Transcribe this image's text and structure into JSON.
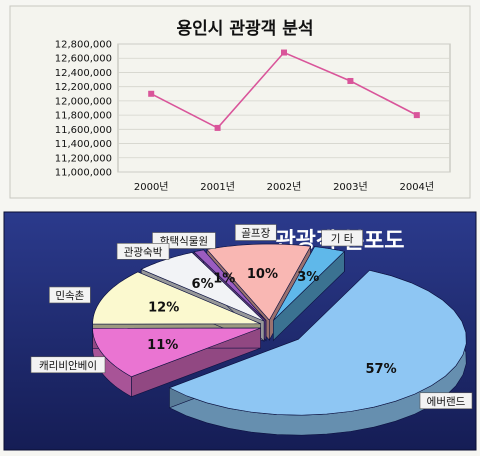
{
  "chart_data": [
    {
      "type": "line",
      "title": "용인시 관광객 분석",
      "categories": [
        "2000년",
        "2001년",
        "2002년",
        "2003년",
        "2004년"
      ],
      "values": [
        12100000,
        11620000,
        12680000,
        12280000,
        11800000
      ],
      "ylim": [
        11000000,
        12800000
      ],
      "yticks": [
        11000000,
        11200000,
        11400000,
        11600000,
        11800000,
        12000000,
        12200000,
        12400000,
        12600000,
        12800000
      ],
      "ytick_labels": [
        "11,000,000",
        "11,200,000",
        "11,400,000",
        "11,600,000",
        "11,800,000",
        "12,000,000",
        "12,200,000",
        "12,400,000",
        "12,600,000",
        "12,800,000"
      ],
      "grid": true,
      "color": "#d9559a"
    },
    {
      "type": "pie",
      "title": "관광객 분포도",
      "labels": [
        "에버랜드",
        "캐리비안베이",
        "민속촌",
        "관광숙박",
        "한택식물원",
        "골프장",
        "기 타"
      ],
      "values": [
        57,
        11,
        12,
        6,
        1,
        10,
        3
      ],
      "value_labels": [
        "57%",
        "11%",
        "12%",
        "6%",
        "1%",
        "10%",
        "3%"
      ],
      "colors": [
        "#8ec6f3",
        "#ea74d2",
        "#fbf9cf",
        "#f2f3f6",
        "#9b5cc0",
        "#f9b7b3",
        "#5fb8ea"
      ],
      "background": "#1f2c75"
    }
  ]
}
